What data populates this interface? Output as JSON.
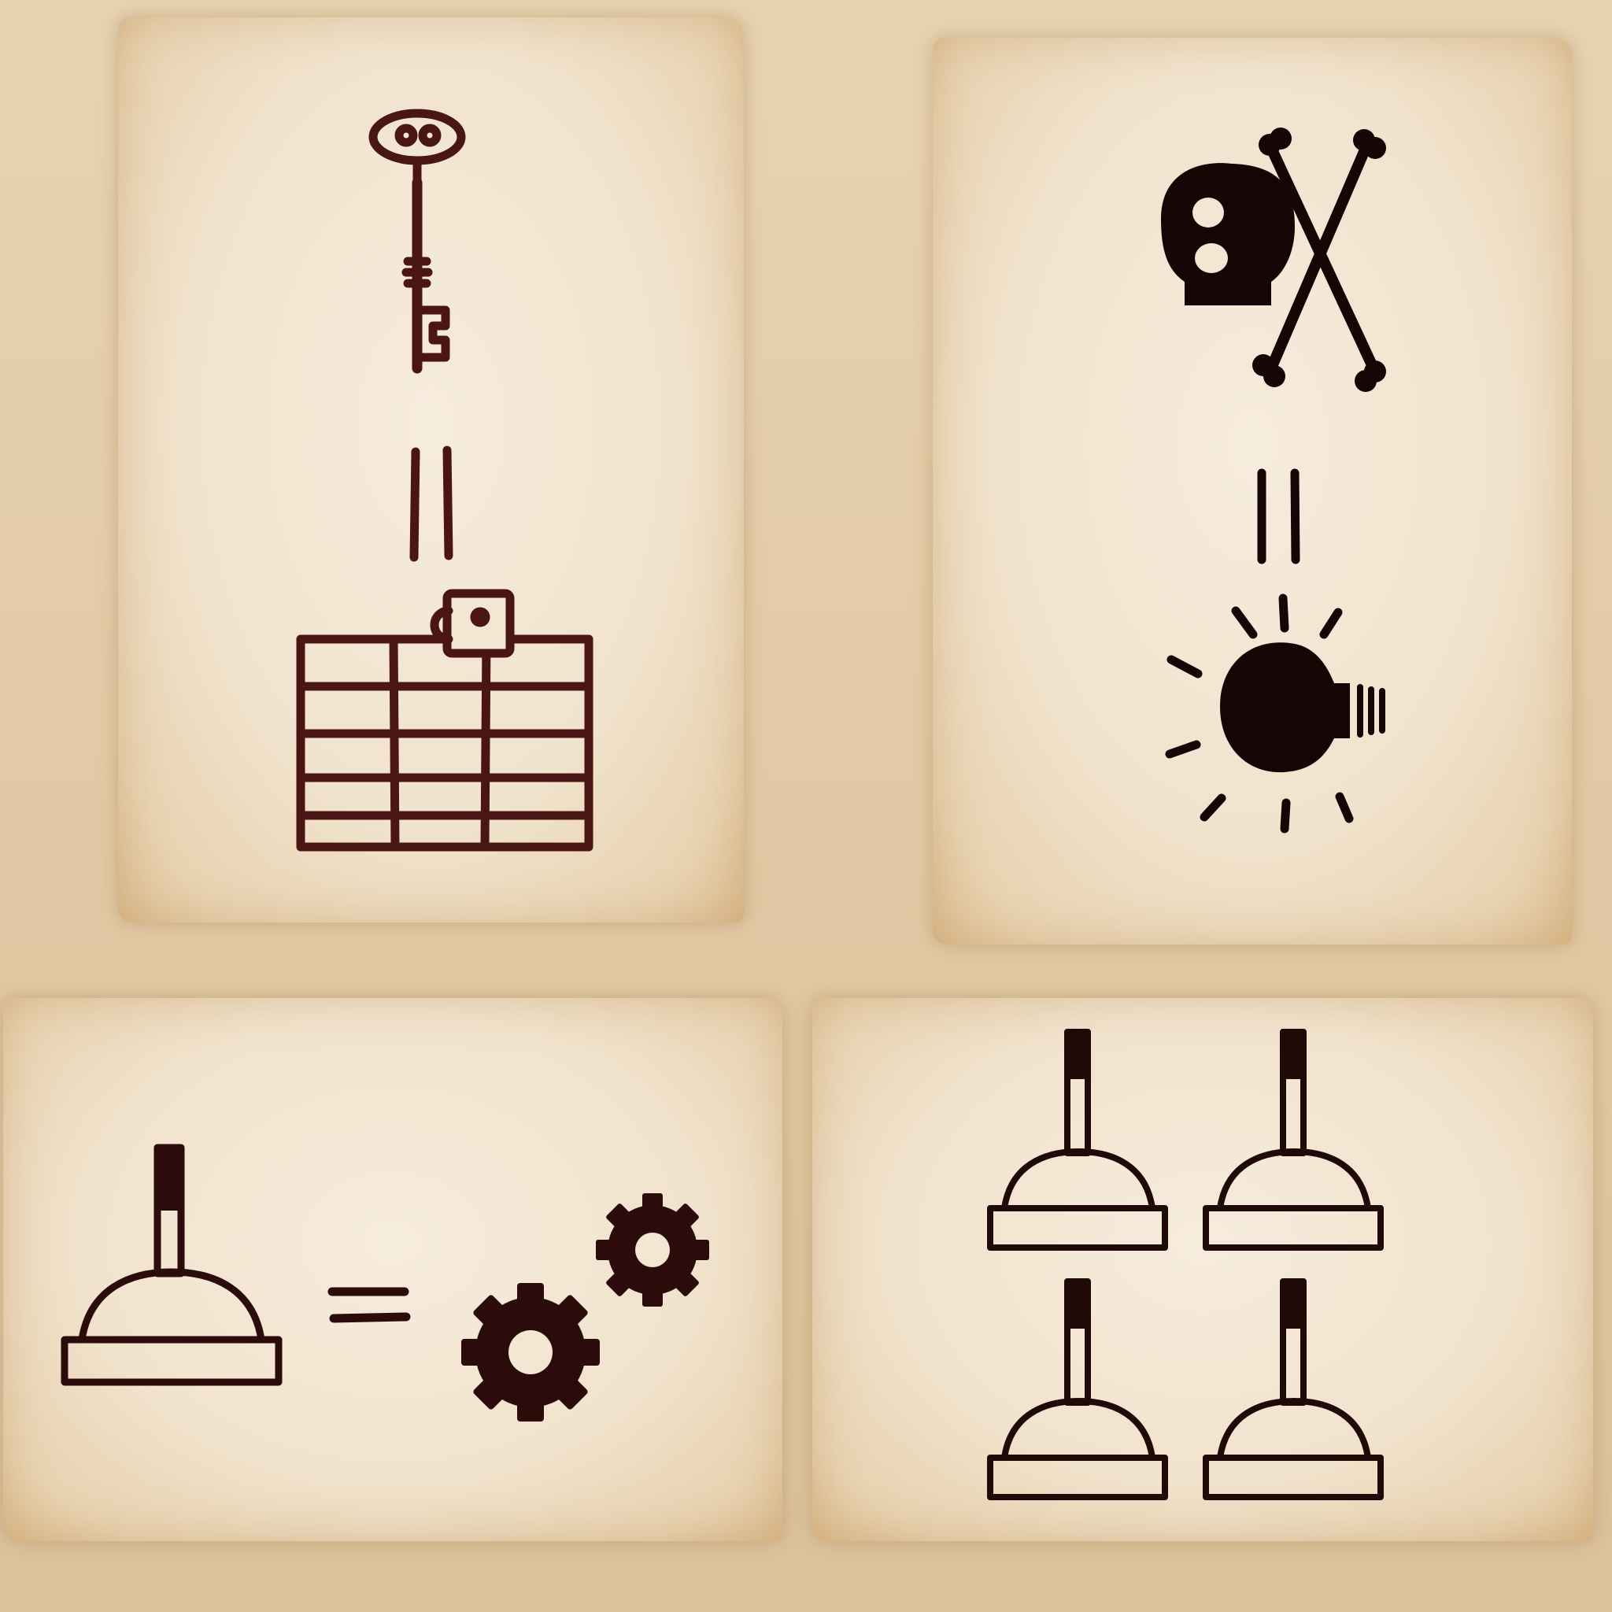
{
  "puzzle": {
    "clues": [
      {
        "id": "key-clue",
        "left": "key-icon",
        "relation": "equals",
        "right": "locked-grid-icon",
        "ink": "#4a1614"
      },
      {
        "id": "skull-clue",
        "left": "skull-crossbones-icon",
        "relation": "equals",
        "right": "lightbulb-icon",
        "ink": "#150606"
      },
      {
        "id": "lever-clue",
        "left": "lever-icon",
        "relation": "equals",
        "right": "gears-icon",
        "ink": "#2b0c0a"
      },
      {
        "id": "levers-panel",
        "items": [
          "lever-icon",
          "lever-icon",
          "lever-icon",
          "lever-icon"
        ],
        "ink": "#1f0a08"
      }
    ],
    "colors": {
      "paper": "#f3e7d4",
      "paper_edge": "#d9b98c",
      "background": "#e4cba6"
    }
  }
}
